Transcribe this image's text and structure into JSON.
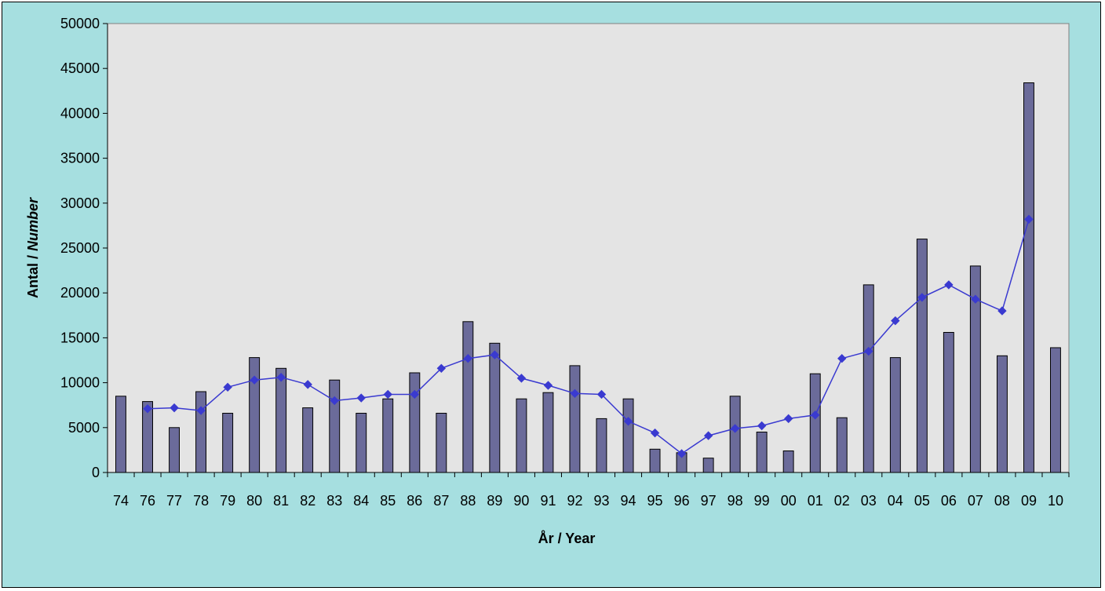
{
  "chart_data": {
    "type": "bar",
    "title": "",
    "xlabel": "År / Year",
    "ylabel_prefix": "Antal / ",
    "ylabel_italic": "Number",
    "ylim": [
      0,
      50000
    ],
    "yticks": [
      0,
      5000,
      10000,
      15000,
      20000,
      25000,
      30000,
      35000,
      40000,
      45000,
      50000
    ],
    "grid": false,
    "categories": [
      "74",
      "76",
      "77",
      "78",
      "79",
      "80",
      "81",
      "82",
      "83",
      "84",
      "85",
      "86",
      "87",
      "88",
      "89",
      "90",
      "91",
      "92",
      "93",
      "94",
      "95",
      "96",
      "97",
      "98",
      "99",
      "00",
      "01",
      "02",
      "03",
      "04",
      "05",
      "06",
      "07",
      "08",
      "09",
      "10"
    ],
    "series": [
      {
        "type": "bar",
        "values": [
          8500,
          7900,
          5000,
          9000,
          6600,
          12800,
          11600,
          7200,
          10300,
          6600,
          8200,
          11100,
          6600,
          16800,
          14400,
          8200,
          8900,
          11900,
          6000,
          8200,
          2600,
          2200,
          1600,
          8500,
          4500,
          2400,
          11000,
          6100,
          20900,
          12800,
          26000,
          15600,
          23000,
          13000,
          43400,
          13900
        ]
      },
      {
        "type": "line",
        "values": [
          null,
          7100,
          7200,
          6900,
          9500,
          10300,
          10600,
          9800,
          8000,
          8300,
          8700,
          8700,
          11600,
          12700,
          13100,
          10500,
          9700,
          8800,
          8700,
          5700,
          4400,
          2100,
          4100,
          4900,
          5200,
          6000,
          6400,
          12700,
          13500,
          16900,
          19500,
          20900,
          19300,
          18000,
          28200,
          null
        ]
      }
    ],
    "colors": {
      "background": "#a6dfe0",
      "plot_area": "#e4e4e4",
      "bar_fill": "#6b6b9a",
      "bar_stroke": "#000000",
      "line": "#3a3ad0"
    }
  }
}
